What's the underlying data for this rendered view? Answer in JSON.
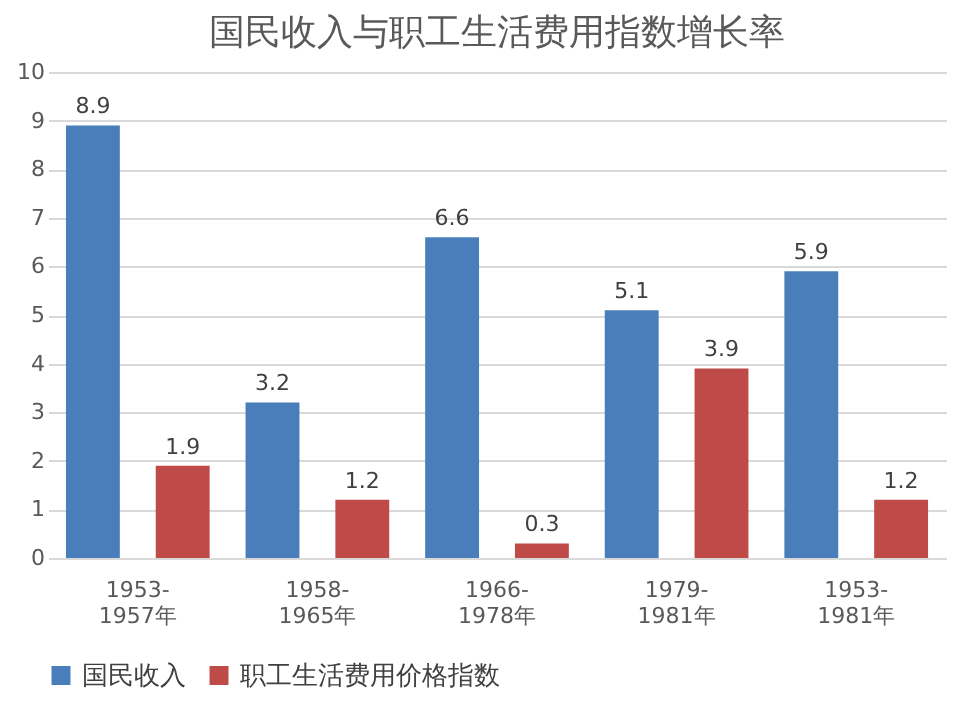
{
  "chart_data": {
    "type": "bar",
    "title": "国民收入与职工生活费用指数增长率",
    "categories": [
      "1953-1957年",
      "1958-1965年",
      "1966-1978年",
      "1979-1981年",
      "1953-1981年"
    ],
    "series": [
      {
        "name": "国民收入",
        "color": "#4a7ebb",
        "values": [
          8.9,
          3.2,
          6.6,
          5.1,
          5.9
        ]
      },
      {
        "name": "职工生活费用价格指数",
        "color": "#be4b48",
        "values": [
          1.9,
          1.2,
          0.3,
          3.9,
          1.2
        ]
      }
    ],
    "ylim": [
      0,
      10
    ],
    "yticks": [
      0,
      1,
      2,
      3,
      4,
      5,
      6,
      7,
      8,
      9,
      10
    ],
    "grid": "y",
    "legend": "bottom",
    "data_labels": true
  }
}
